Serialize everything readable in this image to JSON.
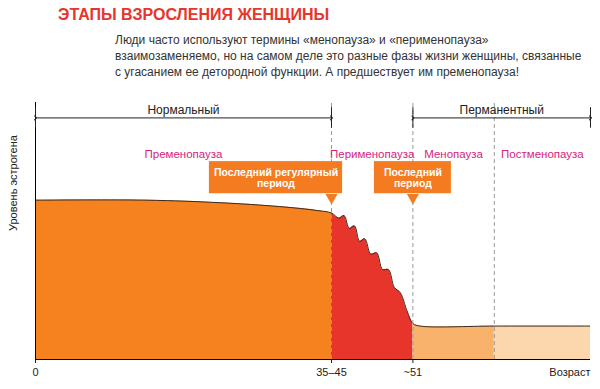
{
  "chart_data": {
    "type": "area",
    "title": "ЭТАПЫ ВЗРОСЛЕНИЯ ЖЕНЩИНЫ",
    "subtitle": "Люди часто используют термины «менопауза» и «перименопауза» взаимозаменяемо, но на самом деле это разные фазы жизни женщины, связанные с угасанием ее детородной функции. А предшествует им пременопауза!",
    "x_label": "Возраст",
    "y_label": "Уровень эстрогена",
    "x": [
      0,
      15,
      25,
      33,
      38,
      40,
      41,
      41.7,
      42.4,
      43.1,
      43.8,
      44.5,
      45.3,
      46.1,
      46.9,
      47.7,
      48.5,
      49.3,
      50.2,
      51,
      52,
      62,
      75
    ],
    "values": [
      62,
      62,
      61,
      59.5,
      58,
      57,
      55,
      56,
      51,
      52,
      46,
      47,
      41,
      41.5,
      35,
      35,
      28,
      26,
      19,
      14,
      13,
      13,
      13
    ],
    "xlim": [
      0,
      75
    ],
    "ylim": [
      0,
      100
    ],
    "xticks": [
      0,
      {
        "value": 40,
        "label": "35–45"
      },
      {
        "value": 51,
        "label": "~51"
      }
    ],
    "yticks": [],
    "tick_labels": "x",
    "grid": false,
    "phases": [
      {
        "name": "Пременопауза",
        "from": 0,
        "to": 40,
        "color": "#f5821f"
      },
      {
        "name": "Перименопауза",
        "from": 40,
        "to": 51,
        "color": "#e8352b"
      },
      {
        "name": "Менопауза",
        "from": 51,
        "to": 62,
        "color": "#f9b26b"
      },
      {
        "name": "Постменопауза",
        "from": 62,
        "to": 75,
        "color": "#fcd7ae"
      }
    ],
    "spans": [
      {
        "label": "Нормальный",
        "from": 0,
        "to": 40
      },
      {
        "label": "Перманентный",
        "from": 51,
        "to": 75
      }
    ],
    "callouts": [
      {
        "label": "Последний регулярный\nпериод",
        "x": 40
      },
      {
        "label": "Последний\nпериод",
        "x": 51
      }
    ]
  }
}
